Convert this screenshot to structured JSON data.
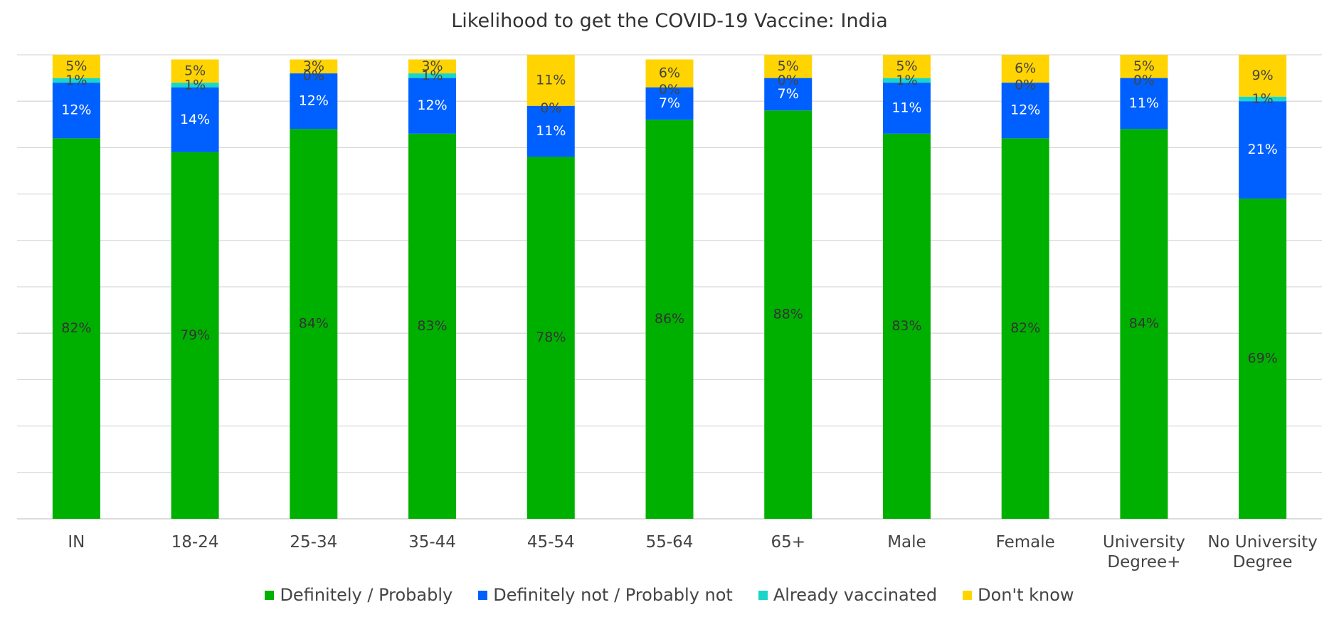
{
  "chart_data": {
    "type": "bar",
    "stacked": true,
    "title": "Likelihood to get the COVID-19 Vaccine: India",
    "xlabel": "",
    "ylabel": "",
    "ylim": [
      0,
      100
    ],
    "grid": true,
    "legend_position": "bottom",
    "categories": [
      [
        "IN"
      ],
      [
        "18-24"
      ],
      [
        "25-34"
      ],
      [
        "35-44"
      ],
      [
        "45-54"
      ],
      [
        "55-64"
      ],
      [
        "65+"
      ],
      [
        "Male"
      ],
      [
        "Female"
      ],
      [
        "University",
        "Degree+"
      ],
      [
        "No University",
        "Degree"
      ]
    ],
    "series": [
      {
        "name": "Definitely / Probably",
        "color": "#00B000",
        "values": [
          82,
          79,
          84,
          83,
          78,
          86,
          88,
          83,
          82,
          84,
          69
        ],
        "labels": [
          "82%",
          "79%",
          "84%",
          "83%",
          "78%",
          "86%",
          "88%",
          "83%",
          "82%",
          "84%",
          "69%"
        ],
        "label_color": "#333333"
      },
      {
        "name": "Definitely not / Probably not",
        "color": "#0060FF",
        "values": [
          12,
          14,
          12,
          12,
          11,
          7,
          7,
          11,
          12,
          11,
          21
        ],
        "labels": [
          "12%",
          "14%",
          "12%",
          "12%",
          "11%",
          "7%",
          "7%",
          "11%",
          "12%",
          "11%",
          "21%"
        ],
        "label_color": "#ffffff"
      },
      {
        "name": "Already vaccinated",
        "color": "#1AD6C8",
        "values": [
          1,
          1,
          0,
          1,
          0,
          0,
          0,
          1,
          0,
          0,
          1
        ],
        "labels": [
          "1%",
          "1%",
          "0%",
          "1%",
          "0%",
          "0%",
          "0%",
          "1%",
          "0%",
          "0%",
          "1%"
        ],
        "label_color": "#444444"
      },
      {
        "name": "Don't know",
        "color": "#FFD400",
        "values": [
          5,
          5,
          3,
          3,
          11,
          6,
          5,
          5,
          6,
          5,
          9
        ],
        "labels": [
          "5%",
          "5%",
          "3%",
          "3%",
          "11%",
          "6%",
          "5%",
          "5%",
          "6%",
          "5%",
          "9%"
        ],
        "label_color": "#444444"
      }
    ]
  }
}
